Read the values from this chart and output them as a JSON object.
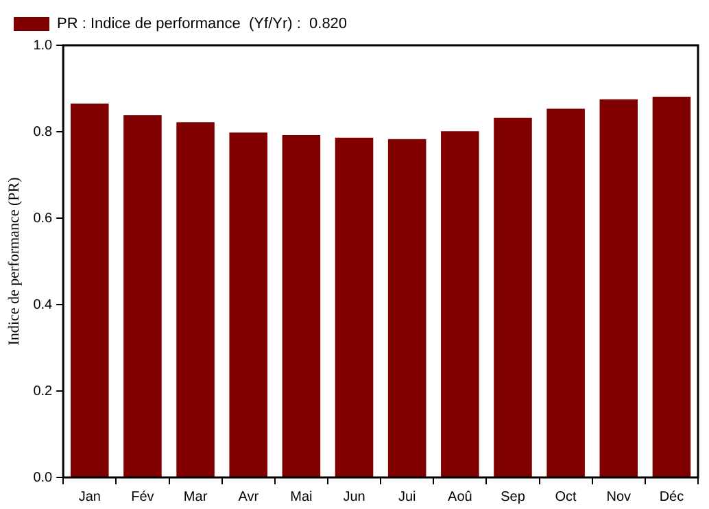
{
  "chart_data": {
    "type": "bar",
    "ylabel": "Indice de performance (PR)",
    "categories": [
      "Jan",
      "Fév",
      "Mar",
      "Avr",
      "Mai",
      "Jun",
      "Jui",
      "Aoû",
      "Sep",
      "Oct",
      "Nov",
      "Déc"
    ],
    "series": [
      {
        "name": "PR : Indice de performance  (Yf/Yr) :  0.820",
        "color": "#800000",
        "values": [
          0.865,
          0.838,
          0.822,
          0.798,
          0.792,
          0.786,
          0.783,
          0.801,
          0.832,
          0.853,
          0.875,
          0.881
        ]
      }
    ],
    "ylim": [
      0,
      1
    ],
    "yticks": [
      {
        "value": 0,
        "label": "0.0"
      },
      {
        "value": 0.2,
        "label": "0.2"
      },
      {
        "value": 0.4,
        "label": "0.4"
      },
      {
        "value": 0.6,
        "label": "0.6"
      },
      {
        "value": 0.8,
        "label": "0.8"
      },
      {
        "value": 1,
        "label": "1.0"
      }
    ],
    "grid": false,
    "legend": "top left"
  }
}
